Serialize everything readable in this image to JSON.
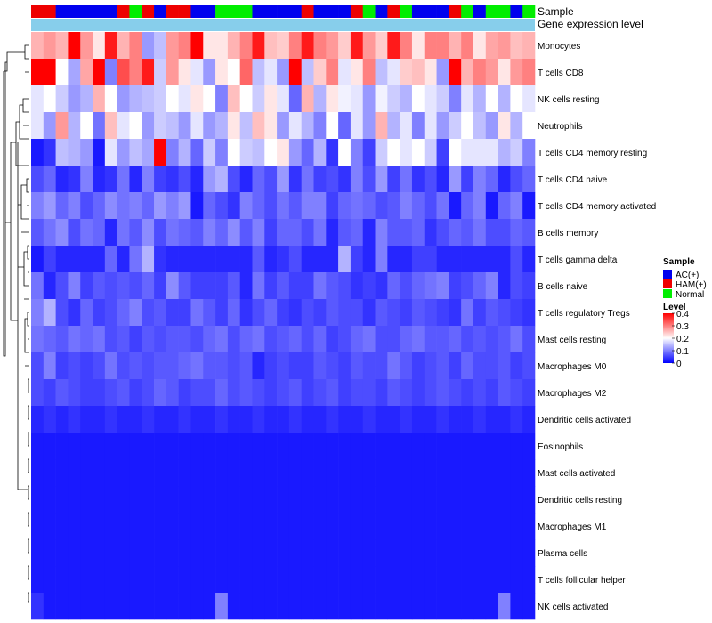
{
  "chart_data": {
    "type": "heatmap",
    "title": "",
    "annotation_tracks": [
      "Sample",
      "Gene expression level"
    ],
    "legend_sample_title": "Sample",
    "legend_sample_entries": [
      {
        "label": "AC(+)",
        "color": "#0000EE"
      },
      {
        "label": "HAM(+)",
        "color": "#EE0000"
      },
      {
        "label": "Normal",
        "color": "#00EE00"
      }
    ],
    "legend_level_title": "Level",
    "legend_level_ticks": [
      "0.4",
      "0.3",
      "0.2",
      "0.1",
      "0"
    ],
    "legend_level_range": [
      0,
      0.4
    ],
    "colors": {
      "low": "#0000FF",
      "mid": "#FFFFFF",
      "high": "#FF0000",
      "track": "#87CEEB"
    },
    "sample_groups": [
      "HAM(+)",
      "HAM(+)",
      "AC(+)",
      "AC(+)",
      "AC(+)",
      "AC(+)",
      "AC(+)",
      "HAM(+)",
      "Normal",
      "HAM(+)",
      "AC(+)",
      "HAM(+)",
      "HAM(+)",
      "AC(+)",
      "AC(+)",
      "Normal",
      "Normal",
      "Normal",
      "AC(+)",
      "AC(+)",
      "AC(+)",
      "AC(+)",
      "HAM(+)",
      "AC(+)",
      "AC(+)",
      "AC(+)",
      "HAM(+)",
      "Normal",
      "AC(+)",
      "HAM(+)",
      "Normal",
      "AC(+)",
      "AC(+)",
      "AC(+)",
      "HAM(+)",
      "Normal",
      "AC(+)",
      "Normal",
      "Normal",
      "AC(+)",
      "Normal"
    ],
    "rows": [
      {
        "name": "Monocytes",
        "values": [
          0.26,
          0.28,
          0.26,
          0.4,
          0.28,
          0.22,
          0.38,
          0.26,
          0.3,
          0.12,
          0.15,
          0.28,
          0.3,
          0.4,
          0.22,
          0.22,
          0.26,
          0.3,
          0.38,
          0.25,
          0.24,
          0.3,
          0.38,
          0.3,
          0.28,
          0.24,
          0.38,
          0.28,
          0.24,
          0.38,
          0.3,
          0.22,
          0.3,
          0.3,
          0.26,
          0.3,
          0.22,
          0.27,
          0.28,
          0.25,
          0.26
        ]
      },
      {
        "name": "T cells CD8",
        "values": [
          0.4,
          0.4,
          0.2,
          0.13,
          0.27,
          0.4,
          0.1,
          0.34,
          0.3,
          0.38,
          0.16,
          0.28,
          0.22,
          0.18,
          0.12,
          0.22,
          0.2,
          0.32,
          0.15,
          0.18,
          0.12,
          0.4,
          0.15,
          0.24,
          0.3,
          0.18,
          0.22,
          0.3,
          0.15,
          0.18,
          0.24,
          0.25,
          0.22,
          0.12,
          0.4,
          0.26,
          0.3,
          0.28,
          0.22,
          0.28,
          0.3
        ]
      },
      {
        "name": "NK cells resting",
        "values": [
          0.18,
          0.2,
          0.16,
          0.12,
          0.14,
          0.26,
          0.2,
          0.12,
          0.14,
          0.15,
          0.16,
          0.2,
          0.18,
          0.22,
          0.2,
          0.1,
          0.25,
          0.2,
          0.16,
          0.22,
          0.18,
          0.08,
          0.26,
          0.14,
          0.22,
          0.19,
          0.18,
          0.12,
          0.19,
          0.16,
          0.14,
          0.2,
          0.18,
          0.16,
          0.1,
          0.18,
          0.14,
          0.2,
          0.14,
          0.2,
          0.18
        ]
      },
      {
        "name": "Neutrophils",
        "values": [
          0.18,
          0.12,
          0.28,
          0.14,
          0.2,
          0.09,
          0.25,
          0.18,
          0.2,
          0.12,
          0.16,
          0.15,
          0.12,
          0.18,
          0.12,
          0.14,
          0.22,
          0.15,
          0.25,
          0.22,
          0.12,
          0.18,
          0.14,
          0.1,
          0.2,
          0.08,
          0.18,
          0.12,
          0.26,
          0.14,
          0.18,
          0.1,
          0.18,
          0.12,
          0.16,
          0.2,
          0.15,
          0.12,
          0.22,
          0.14,
          0.2
        ]
      },
      {
        "name": "T cells CD4 memory resting",
        "values": [
          0.02,
          0.04,
          0.15,
          0.14,
          0.12,
          0.02,
          0.18,
          0.12,
          0.15,
          0.13,
          0.4,
          0.1,
          0.14,
          0.08,
          0.16,
          0.1,
          0.2,
          0.16,
          0.15,
          0.2,
          0.22,
          0.12,
          0.08,
          0.14,
          0.04,
          0.2,
          0.1,
          0.05,
          0.16,
          0.2,
          0.18,
          0.2,
          0.16,
          0.05,
          0.2,
          0.18,
          0.18,
          0.18,
          0.14,
          0.16,
          0.1
        ]
      },
      {
        "name": "T cells CD4 naive",
        "values": [
          0.06,
          0.08,
          0.03,
          0.04,
          0.1,
          0.03,
          0.04,
          0.09,
          0.03,
          0.1,
          0.05,
          0.04,
          0.06,
          0.03,
          0.12,
          0.14,
          0.06,
          0.03,
          0.08,
          0.06,
          0.12,
          0.04,
          0.09,
          0.05,
          0.06,
          0.04,
          0.1,
          0.06,
          0.12,
          0.05,
          0.09,
          0.04,
          0.06,
          0.03,
          0.12,
          0.05,
          0.1,
          0.08,
          0.03,
          0.06,
          0.08
        ]
      },
      {
        "name": "T cells CD4 memory activated",
        "values": [
          0.1,
          0.12,
          0.08,
          0.1,
          0.06,
          0.08,
          0.11,
          0.09,
          0.1,
          0.08,
          0.12,
          0.1,
          0.12,
          0.02,
          0.08,
          0.06,
          0.04,
          0.1,
          0.08,
          0.06,
          0.09,
          0.07,
          0.1,
          0.1,
          0.05,
          0.08,
          0.09,
          0.08,
          0.06,
          0.07,
          0.1,
          0.08,
          0.06,
          0.09,
          0.02,
          0.08,
          0.1,
          0.02,
          0.08,
          0.1,
          0.02
        ]
      },
      {
        "name": "B cells memory",
        "values": [
          0.07,
          0.09,
          0.11,
          0.06,
          0.09,
          0.08,
          0.03,
          0.09,
          0.07,
          0.11,
          0.06,
          0.09,
          0.08,
          0.07,
          0.1,
          0.08,
          0.11,
          0.07,
          0.1,
          0.05,
          0.08,
          0.08,
          0.06,
          0.09,
          0.03,
          0.07,
          0.08,
          0.03,
          0.1,
          0.07,
          0.07,
          0.08,
          0.04,
          0.06,
          0.08,
          0.07,
          0.09,
          0.06,
          0.06,
          0.08,
          0.07
        ]
      },
      {
        "name": "T cells gamma delta",
        "values": [
          0.02,
          0.05,
          0.03,
          0.03,
          0.03,
          0.03,
          0.08,
          0.03,
          0.09,
          0.14,
          0.04,
          0.03,
          0.03,
          0.03,
          0.03,
          0.03,
          0.03,
          0.03,
          0.07,
          0.03,
          0.04,
          0.06,
          0.03,
          0.03,
          0.03,
          0.14,
          0.05,
          0.03,
          0.1,
          0.03,
          0.03,
          0.05,
          0.05,
          0.03,
          0.03,
          0.03,
          0.03,
          0.03,
          0.03,
          0.06,
          0.03
        ]
      },
      {
        "name": "B cells naive",
        "values": [
          0.09,
          0.03,
          0.06,
          0.1,
          0.05,
          0.07,
          0.06,
          0.07,
          0.06,
          0.08,
          0.05,
          0.11,
          0.07,
          0.05,
          0.05,
          0.05,
          0.07,
          0.03,
          0.09,
          0.05,
          0.07,
          0.05,
          0.05,
          0.09,
          0.07,
          0.06,
          0.04,
          0.05,
          0.04,
          0.08,
          0.06,
          0.08,
          0.09,
          0.1,
          0.05,
          0.06,
          0.08,
          0.1,
          0.03,
          0.06,
          0.05
        ]
      },
      {
        "name": "T cells regulatory  Tregs",
        "values": [
          0.1,
          0.14,
          0.06,
          0.04,
          0.08,
          0.05,
          0.06,
          0.08,
          0.1,
          0.06,
          0.07,
          0.05,
          0.05,
          0.09,
          0.07,
          0.05,
          0.08,
          0.04,
          0.06,
          0.08,
          0.05,
          0.04,
          0.06,
          0.05,
          0.07,
          0.06,
          0.06,
          0.04,
          0.07,
          0.06,
          0.05,
          0.07,
          0.06,
          0.05,
          0.04,
          0.09,
          0.05,
          0.07,
          0.06,
          0.05,
          0.04
        ]
      },
      {
        "name": "Mast cells resting",
        "values": [
          0.09,
          0.08,
          0.07,
          0.09,
          0.08,
          0.09,
          0.06,
          0.07,
          0.05,
          0.07,
          0.06,
          0.07,
          0.07,
          0.06,
          0.08,
          0.09,
          0.06,
          0.08,
          0.09,
          0.06,
          0.07,
          0.08,
          0.06,
          0.08,
          0.05,
          0.06,
          0.08,
          0.09,
          0.06,
          0.06,
          0.08,
          0.09,
          0.07,
          0.07,
          0.08,
          0.06,
          0.07,
          0.06,
          0.07,
          0.09,
          0.06
        ]
      },
      {
        "name": "Macrophages M0",
        "values": [
          0.06,
          0.1,
          0.05,
          0.06,
          0.05,
          0.06,
          0.09,
          0.06,
          0.07,
          0.06,
          0.07,
          0.07,
          0.08,
          0.09,
          0.07,
          0.07,
          0.06,
          0.07,
          0.03,
          0.05,
          0.06,
          0.05,
          0.05,
          0.07,
          0.06,
          0.05,
          0.07,
          0.06,
          0.06,
          0.09,
          0.07,
          0.05,
          0.06,
          0.07,
          0.05,
          0.08,
          0.06,
          0.06,
          0.07,
          0.05,
          0.06
        ]
      },
      {
        "name": "Macrophages M2",
        "values": [
          0.06,
          0.05,
          0.07,
          0.06,
          0.05,
          0.05,
          0.06,
          0.07,
          0.05,
          0.06,
          0.08,
          0.07,
          0.05,
          0.06,
          0.06,
          0.08,
          0.06,
          0.07,
          0.06,
          0.05,
          0.06,
          0.07,
          0.05,
          0.06,
          0.07,
          0.05,
          0.06,
          0.06,
          0.05,
          0.07,
          0.06,
          0.05,
          0.06,
          0.07,
          0.06,
          0.05,
          0.06,
          0.05,
          0.07,
          0.06,
          0.05
        ]
      },
      {
        "name": "Dendritic cells activated",
        "values": [
          0.03,
          0.04,
          0.03,
          0.04,
          0.03,
          0.03,
          0.04,
          0.03,
          0.03,
          0.04,
          0.03,
          0.03,
          0.04,
          0.03,
          0.03,
          0.04,
          0.03,
          0.03,
          0.04,
          0.03,
          0.03,
          0.04,
          0.03,
          0.03,
          0.04,
          0.03,
          0.03,
          0.04,
          0.03,
          0.03,
          0.04,
          0.03,
          0.03,
          0.04,
          0.03,
          0.03,
          0.04,
          0.03,
          0.03,
          0.04,
          0.03
        ]
      },
      {
        "name": "Eosinophils",
        "values": [
          0.02,
          0.02,
          0.02,
          0.02,
          0.02,
          0.02,
          0.02,
          0.02,
          0.02,
          0.02,
          0.02,
          0.02,
          0.02,
          0.02,
          0.02,
          0.02,
          0.02,
          0.02,
          0.02,
          0.02,
          0.02,
          0.02,
          0.02,
          0.02,
          0.02,
          0.02,
          0.02,
          0.02,
          0.02,
          0.02,
          0.02,
          0.02,
          0.02,
          0.02,
          0.02,
          0.02,
          0.02,
          0.02,
          0.02,
          0.02,
          0.02
        ]
      },
      {
        "name": "Mast cells activated",
        "values": [
          0.02,
          0.02,
          0.02,
          0.02,
          0.02,
          0.02,
          0.02,
          0.02,
          0.02,
          0.02,
          0.02,
          0.02,
          0.02,
          0.02,
          0.02,
          0.02,
          0.02,
          0.02,
          0.02,
          0.02,
          0.02,
          0.02,
          0.02,
          0.02,
          0.02,
          0.02,
          0.02,
          0.02,
          0.02,
          0.02,
          0.02,
          0.02,
          0.02,
          0.02,
          0.02,
          0.02,
          0.02,
          0.02,
          0.02,
          0.02,
          0.02
        ]
      },
      {
        "name": "Dendritic cells resting",
        "values": [
          0.02,
          0.02,
          0.02,
          0.02,
          0.02,
          0.02,
          0.02,
          0.02,
          0.02,
          0.02,
          0.02,
          0.02,
          0.02,
          0.02,
          0.02,
          0.02,
          0.02,
          0.02,
          0.02,
          0.02,
          0.02,
          0.02,
          0.02,
          0.02,
          0.02,
          0.02,
          0.02,
          0.02,
          0.02,
          0.02,
          0.02,
          0.02,
          0.02,
          0.02,
          0.02,
          0.02,
          0.02,
          0.02,
          0.02,
          0.02,
          0.02
        ]
      },
      {
        "name": "Macrophages M1",
        "values": [
          0.02,
          0.02,
          0.02,
          0.02,
          0.02,
          0.02,
          0.02,
          0.02,
          0.02,
          0.02,
          0.02,
          0.02,
          0.02,
          0.02,
          0.02,
          0.02,
          0.02,
          0.02,
          0.02,
          0.02,
          0.02,
          0.02,
          0.02,
          0.02,
          0.02,
          0.02,
          0.02,
          0.02,
          0.02,
          0.02,
          0.02,
          0.02,
          0.02,
          0.02,
          0.02,
          0.02,
          0.02,
          0.02,
          0.02,
          0.02,
          0.02
        ]
      },
      {
        "name": "Plasma cells",
        "values": [
          0.02,
          0.02,
          0.02,
          0.02,
          0.02,
          0.02,
          0.02,
          0.02,
          0.02,
          0.02,
          0.02,
          0.02,
          0.02,
          0.02,
          0.02,
          0.02,
          0.02,
          0.02,
          0.02,
          0.02,
          0.02,
          0.02,
          0.02,
          0.02,
          0.02,
          0.02,
          0.02,
          0.02,
          0.02,
          0.02,
          0.02,
          0.02,
          0.02,
          0.02,
          0.02,
          0.02,
          0.02,
          0.02,
          0.02,
          0.02,
          0.02
        ]
      },
      {
        "name": "T cells follicular helper",
        "values": [
          0.02,
          0.02,
          0.02,
          0.02,
          0.02,
          0.02,
          0.02,
          0.02,
          0.02,
          0.02,
          0.02,
          0.02,
          0.02,
          0.02,
          0.02,
          0.02,
          0.02,
          0.02,
          0.02,
          0.02,
          0.02,
          0.02,
          0.02,
          0.02,
          0.02,
          0.02,
          0.02,
          0.02,
          0.02,
          0.02,
          0.02,
          0.02,
          0.02,
          0.02,
          0.02,
          0.02,
          0.02,
          0.02,
          0.02,
          0.02,
          0.02
        ]
      },
      {
        "name": "NK cells activated",
        "values": [
          0.04,
          0.02,
          0.02,
          0.02,
          0.02,
          0.02,
          0.02,
          0.02,
          0.02,
          0.02,
          0.02,
          0.02,
          0.02,
          0.02,
          0.02,
          0.1,
          0.02,
          0.02,
          0.02,
          0.02,
          0.02,
          0.02,
          0.02,
          0.02,
          0.02,
          0.02,
          0.02,
          0.02,
          0.02,
          0.02,
          0.02,
          0.02,
          0.02,
          0.02,
          0.02,
          0.02,
          0.02,
          0.02,
          0.1,
          0.02,
          0.02
        ]
      }
    ]
  }
}
